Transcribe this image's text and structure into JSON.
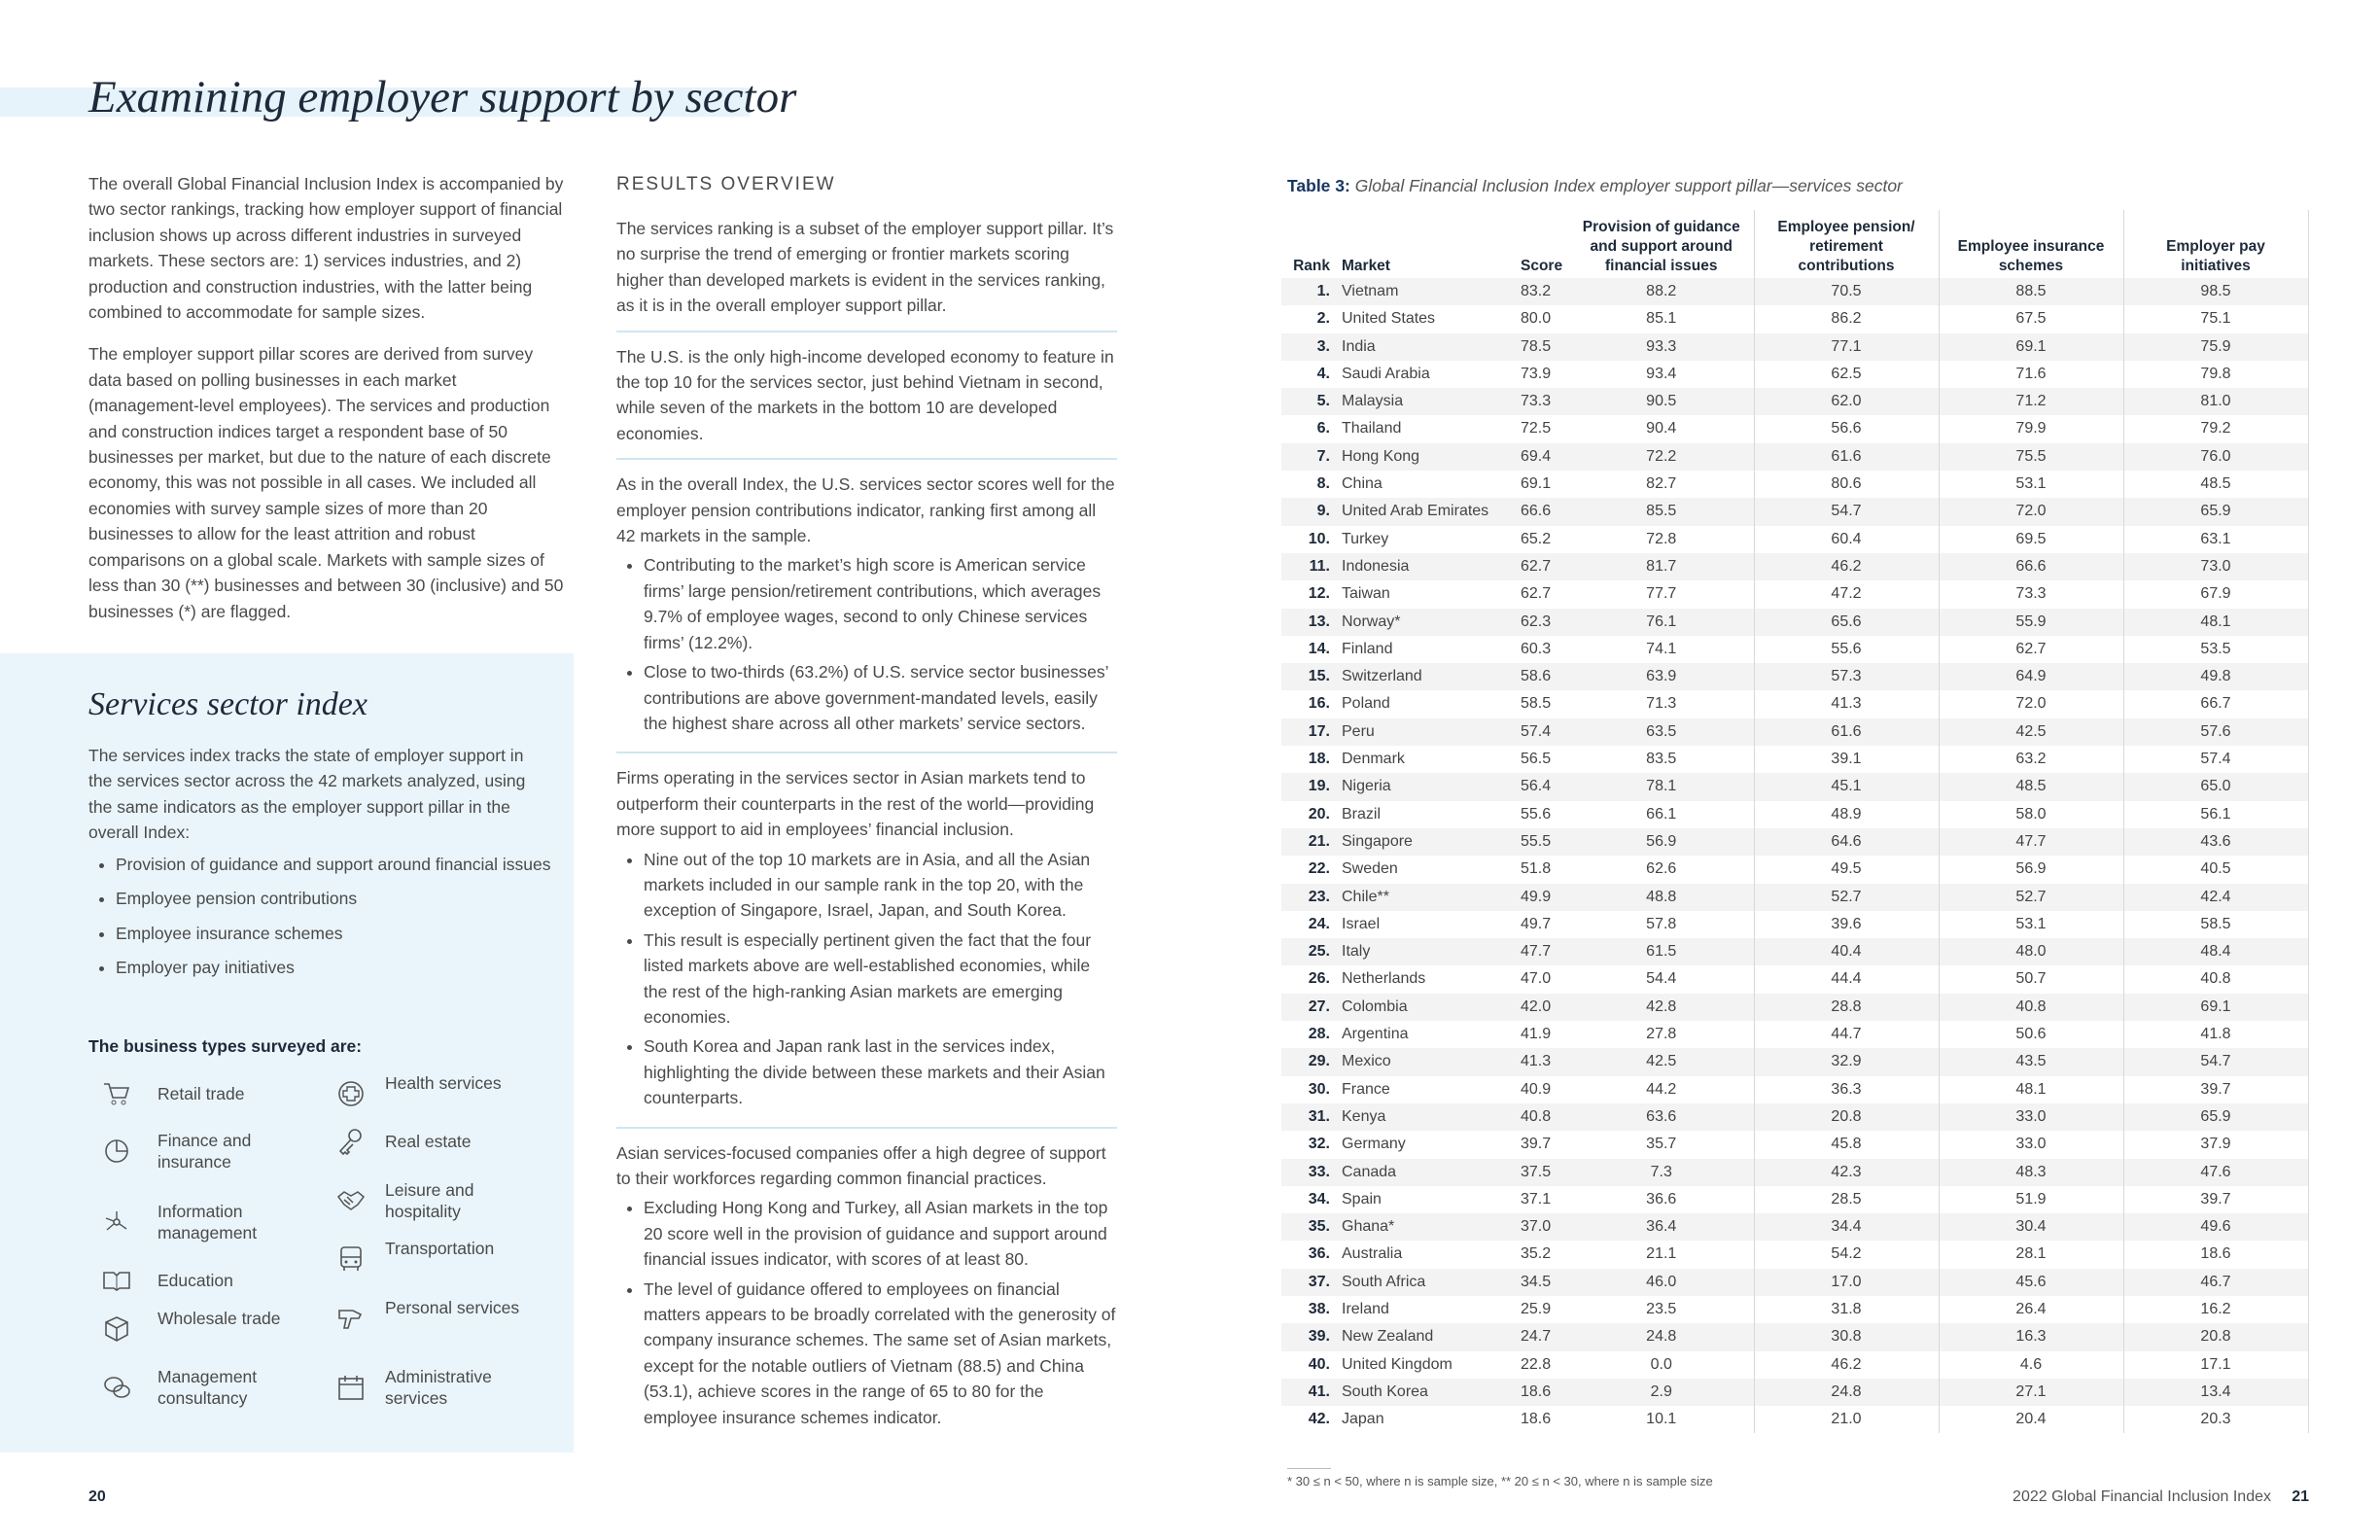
{
  "title": "Examining employer support by sector",
  "intro": [
    "The overall Global Financial Inclusion Index is accompanied by two sector rankings, tracking how employer support of financial inclusion shows up across different industries in surveyed markets. These sectors are: 1) services industries, and 2) production and construction industries, with the latter being combined to accommodate for sample sizes.",
    "The employer support pillar scores are derived from survey data based on polling businesses in each market (management-level employees). The services and production and construction indices target a respondent base of 50 businesses per market, but due to the nature of each discrete economy, this was not possible in all cases. We included all economies with survey sample sizes of more than 20 businesses to allow for the least attrition and robust comparisons on a global scale. Markets with sample sizes of less than 30 (**) businesses and between 30 (inclusive) and 50 businesses (*) are flagged."
  ],
  "services_box": {
    "heading": "Services sector index",
    "text": "The services index tracks the state of employer support in the services sector across the 42 markets analyzed, using the same indicators as the employer support pillar in the overall Index:",
    "bullets": [
      "Provision of guidance and support around financial issues",
      "Employee pension contributions",
      "Employee insurance schemes",
      "Employer pay initiatives"
    ],
    "types_heading": "The business types surveyed are:",
    "types_left": [
      "Retail trade",
      "Finance and insurance",
      "Information management",
      "Education",
      "Wholesale trade",
      "Management consultancy"
    ],
    "types_right": [
      "Health services",
      "Real estate",
      "Leisure and hospitality",
      "Transportation",
      "Personal services",
      "Administrative services"
    ]
  },
  "results": {
    "heading": "RESULTS OVERVIEW",
    "sections": [
      {
        "text": "The services ranking is a subset of the employer support pillar. It’s no surprise the trend of emerging or frontier markets scoring higher than developed markets is evident in the services ranking, as it is in the overall employer support pillar.",
        "bullets": []
      },
      {
        "text": "The U.S. is the only high-income developed economy to feature in the top 10 for the services sector, just behind Vietnam in second, while seven of the markets in the bottom 10 are developed economies.",
        "bullets": []
      },
      {
        "text": "As in the overall Index, the U.S. services sector scores well for the employer pension contributions indicator, ranking first among all 42 markets in the sample.",
        "bullets": [
          "Contributing to the market’s high score is American service firms’ large pension/retirement contributions, which averages 9.7% of employee wages, second to only Chinese services firms’ (12.2%).",
          "Close to two-thirds (63.2%) of U.S. service sector businesses’ contributions are above government-mandated levels, easily the highest share across all other markets’ service sectors."
        ]
      },
      {
        "text": "Firms operating in the services sector in Asian markets tend to outperform their counterparts in the rest of the world—providing more support to aid in employees’ financial inclusion.",
        "bullets": [
          "Nine out of the top 10 markets are in Asia, and all the Asian markets included in our sample rank in the top 20, with the exception of Singapore, Israel, Japan, and South Korea.",
          "This result is especially pertinent given the fact that the four listed markets above are well-established economies, while the rest of the high-ranking Asian markets are emerging economies.",
          "South Korea and Japan rank last in the services index, highlighting the divide between these markets and their Asian counterparts."
        ]
      },
      {
        "text": "Asian services-focused companies offer a high degree of support to their workforces regarding common financial practices.",
        "bullets": [
          "Excluding Hong Kong and Turkey, all Asian markets in the top 20 score well in the provision of guidance and support around financial issues indicator, with scores of at least 80.",
          "The level of guidance offered to employees on financial matters appears to be broadly correlated with the generosity of company insurance schemes. The same set of Asian markets, except for the notable outliers of Vietnam (88.5) and China (53.1), achieve scores in the range of 65 to 80 for the employee insurance schemes indicator."
        ]
      }
    ]
  },
  "table": {
    "caption_label": "Table 3:",
    "caption": "Global Financial Inclusion Index employer support pillar—services sector",
    "headers": [
      "Rank",
      "Market",
      "Score",
      "Provision of guidance and support around financial issues",
      "Employee pension/ retirement contributions",
      "Employee insurance schemes",
      "Employer pay initiatives"
    ],
    "rows": [
      [
        "1.",
        "Vietnam",
        "83.2",
        "88.2",
        "70.5",
        "88.5",
        "98.5"
      ],
      [
        "2.",
        "United States",
        "80.0",
        "85.1",
        "86.2",
        "67.5",
        "75.1"
      ],
      [
        "3.",
        "India",
        "78.5",
        "93.3",
        "77.1",
        "69.1",
        "75.9"
      ],
      [
        "4.",
        "Saudi Arabia",
        "73.9",
        "93.4",
        "62.5",
        "71.6",
        "79.8"
      ],
      [
        "5.",
        "Malaysia",
        "73.3",
        "90.5",
        "62.0",
        "71.2",
        "81.0"
      ],
      [
        "6.",
        "Thailand",
        "72.5",
        "90.4",
        "56.6",
        "79.9",
        "79.2"
      ],
      [
        "7.",
        "Hong Kong",
        "69.4",
        "72.2",
        "61.6",
        "75.5",
        "76.0"
      ],
      [
        "8.",
        "China",
        "69.1",
        "82.7",
        "80.6",
        "53.1",
        "48.5"
      ],
      [
        "9.",
        "United Arab Emirates",
        "66.6",
        "85.5",
        "54.7",
        "72.0",
        "65.9"
      ],
      [
        "10.",
        "Turkey",
        "65.2",
        "72.8",
        "60.4",
        "69.5",
        "63.1"
      ],
      [
        "11.",
        "Indonesia",
        "62.7",
        "81.7",
        "46.2",
        "66.6",
        "73.0"
      ],
      [
        "12.",
        "Taiwan",
        "62.7",
        "77.7",
        "47.2",
        "73.3",
        "67.9"
      ],
      [
        "13.",
        "Norway*",
        "62.3",
        "76.1",
        "65.6",
        "55.9",
        "48.1"
      ],
      [
        "14.",
        "Finland",
        "60.3",
        "74.1",
        "55.6",
        "62.7",
        "53.5"
      ],
      [
        "15.",
        "Switzerland",
        "58.6",
        "63.9",
        "57.3",
        "64.9",
        "49.8"
      ],
      [
        "16.",
        "Poland",
        "58.5",
        "71.3",
        "41.3",
        "72.0",
        "66.7"
      ],
      [
        "17.",
        "Peru",
        "57.4",
        "63.5",
        "61.6",
        "42.5",
        "57.6"
      ],
      [
        "18.",
        "Denmark",
        "56.5",
        "83.5",
        "39.1",
        "63.2",
        "57.4"
      ],
      [
        "19.",
        "Nigeria",
        "56.4",
        "78.1",
        "45.1",
        "48.5",
        "65.0"
      ],
      [
        "20.",
        "Brazil",
        "55.6",
        "66.1",
        "48.9",
        "58.0",
        "56.1"
      ],
      [
        "21.",
        "Singapore",
        "55.5",
        "56.9",
        "64.6",
        "47.7",
        "43.6"
      ],
      [
        "22.",
        "Sweden",
        "51.8",
        "62.6",
        "49.5",
        "56.9",
        "40.5"
      ],
      [
        "23.",
        "Chile**",
        "49.9",
        "48.8",
        "52.7",
        "52.7",
        "42.4"
      ],
      [
        "24.",
        "Israel",
        "49.7",
        "57.8",
        "39.6",
        "53.1",
        "58.5"
      ],
      [
        "25.",
        "Italy",
        "47.7",
        "61.5",
        "40.4",
        "48.0",
        "48.4"
      ],
      [
        "26.",
        "Netherlands",
        "47.0",
        "54.4",
        "44.4",
        "50.7",
        "40.8"
      ],
      [
        "27.",
        "Colombia",
        "42.0",
        "42.8",
        "28.8",
        "40.8",
        "69.1"
      ],
      [
        "28.",
        "Argentina",
        "41.9",
        "27.8",
        "44.7",
        "50.6",
        "41.8"
      ],
      [
        "29.",
        "Mexico",
        "41.3",
        "42.5",
        "32.9",
        "43.5",
        "54.7"
      ],
      [
        "30.",
        "France",
        "40.9",
        "44.2",
        "36.3",
        "48.1",
        "39.7"
      ],
      [
        "31.",
        "Kenya",
        "40.8",
        "63.6",
        "20.8",
        "33.0",
        "65.9"
      ],
      [
        "32.",
        "Germany",
        "39.7",
        "35.7",
        "45.8",
        "33.0",
        "37.9"
      ],
      [
        "33.",
        "Canada",
        "37.5",
        "7.3",
        "42.3",
        "48.3",
        "47.6"
      ],
      [
        "34.",
        "Spain",
        "37.1",
        "36.6",
        "28.5",
        "51.9",
        "39.7"
      ],
      [
        "35.",
        "Ghana*",
        "37.0",
        "36.4",
        "34.4",
        "30.4",
        "49.6"
      ],
      [
        "36.",
        "Australia",
        "35.2",
        "21.1",
        "54.2",
        "28.1",
        "18.6"
      ],
      [
        "37.",
        "South Africa",
        "34.5",
        "46.0",
        "17.0",
        "45.6",
        "46.7"
      ],
      [
        "38.",
        "Ireland",
        "25.9",
        "23.5",
        "31.8",
        "26.4",
        "16.2"
      ],
      [
        "39.",
        "New Zealand",
        "24.7",
        "24.8",
        "30.8",
        "16.3",
        "20.8"
      ],
      [
        "40.",
        "United Kingdom",
        "22.8",
        "0.0",
        "46.2",
        "4.6",
        "17.1"
      ],
      [
        "41.",
        "South Korea",
        "18.6",
        "2.9",
        "24.8",
        "27.1",
        "13.4"
      ],
      [
        "42.",
        "Japan",
        "18.6",
        "10.1",
        "21.0",
        "20.4",
        "20.3"
      ]
    ],
    "footnote": "* 30 ≤ n < 50, where n is sample size, ** 20 ≤ n < 30, where n is sample size"
  },
  "footer": {
    "left_page": "20",
    "publication": "2022 Global Financial Inclusion Index",
    "right_page": "21"
  }
}
